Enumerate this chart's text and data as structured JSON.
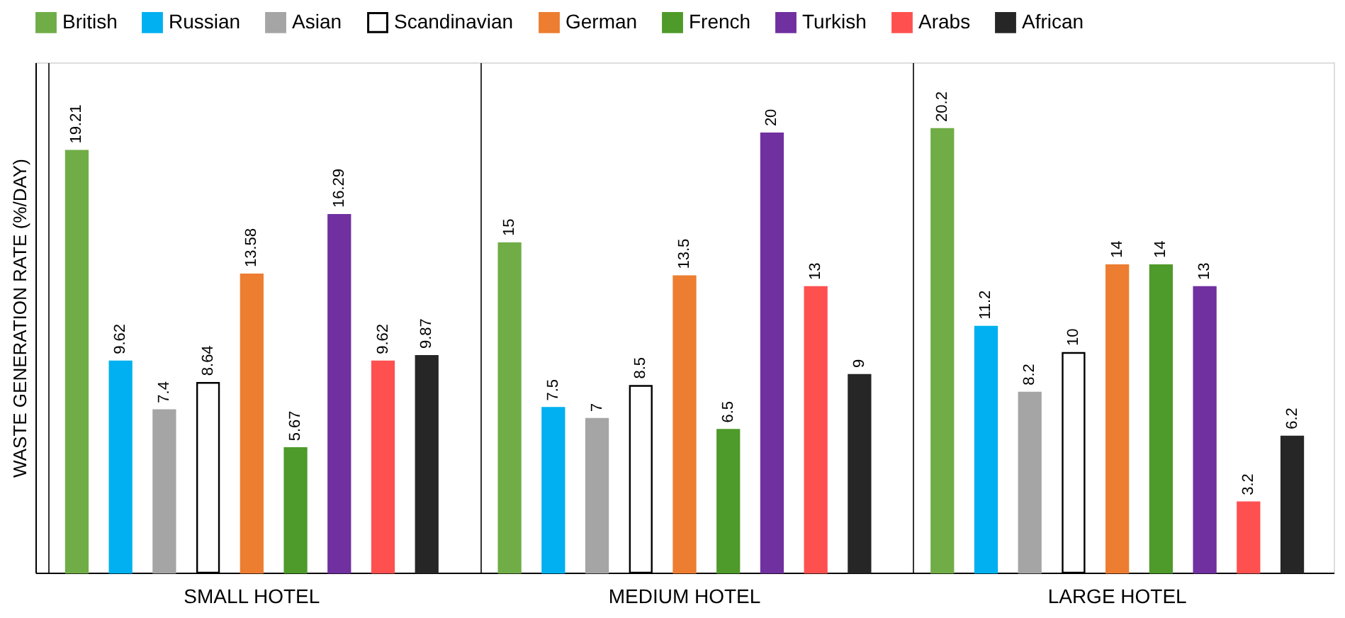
{
  "chart_data": {
    "type": "bar",
    "ylabel": "WASTE GENERATION RATE (%/DAY)",
    "categories": [
      "SMALL HOTEL",
      "MEDIUM HOTEL",
      "LARGE HOTEL"
    ],
    "series": [
      {
        "name": "British",
        "color": "#70ad47",
        "values": [
          19.21,
          15,
          20.2
        ]
      },
      {
        "name": "Russian",
        "color": "#00b0f0",
        "values": [
          9.62,
          7.5,
          11.2
        ]
      },
      {
        "name": "Asian",
        "color": "#a5a5a5",
        "values": [
          7.4,
          7,
          8.2
        ]
      },
      {
        "name": "Scandinavian",
        "color": "#ffffff",
        "values": [
          8.64,
          8.5,
          10
        ]
      },
      {
        "name": "German",
        "color": "#ed7d31",
        "values": [
          13.58,
          13.5,
          14
        ]
      },
      {
        "name": "French",
        "color": "#4e9a2a",
        "values": [
          5.67,
          6.5,
          14
        ]
      },
      {
        "name": "Turkish",
        "color": "#7030a0",
        "values": [
          16.29,
          20,
          13
        ]
      },
      {
        "name": "Arabs",
        "color": "#ff5050",
        "values": [
          9.62,
          13,
          3.2
        ]
      },
      {
        "name": "African",
        "color": "#262626",
        "values": [
          9.87,
          9,
          6.2
        ]
      }
    ],
    "data_labels": true,
    "legend": "top",
    "tick_labels": "x"
  }
}
